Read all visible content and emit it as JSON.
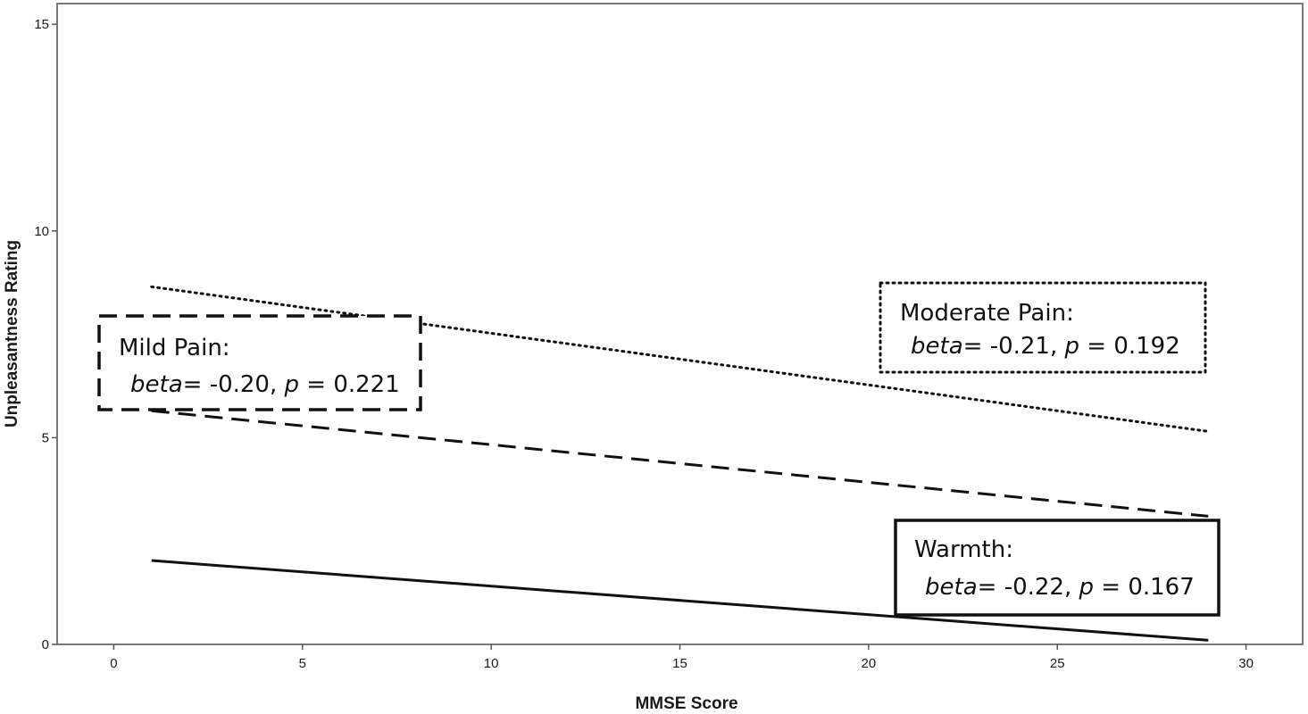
{
  "chart_data": {
    "type": "line",
    "title": "",
    "xlabel": "MMSE Score",
    "ylabel": "Unpleasantness Rating",
    "xlim": [
      -1.5,
      31.5
    ],
    "ylim": [
      0,
      15.5
    ],
    "x_ticks": [
      "0",
      "5",
      "10",
      "15",
      "20",
      "25",
      "30"
    ],
    "y_ticks": [
      "0",
      "5",
      "10",
      "15"
    ],
    "grid": false,
    "series": [
      {
        "name": "Moderate Pain",
        "style": "dotted",
        "x": [
          1,
          29
        ],
        "y": [
          8.65,
          5.15
        ],
        "annotation": {
          "name_text": "Moderate Pain:",
          "beta_label": "beta",
          "beta_text": "= -0.21, ",
          "p_label": "p",
          "p_text": " = 0.192"
        }
      },
      {
        "name": "Mild Pain",
        "style": "dashed",
        "x": [
          1,
          29
        ],
        "y": [
          5.65,
          3.1
        ],
        "annotation": {
          "name_text": "Mild Pain:",
          "beta_label": "beta",
          "beta_text": "= -0.20, ",
          "p_label": "p",
          "p_text": " = 0.221"
        }
      },
      {
        "name": "Warmth",
        "style": "solid",
        "x": [
          1,
          29
        ],
        "y": [
          2.03,
          0.1
        ],
        "annotation": {
          "name_text": "Warmth:",
          "beta_label": "beta",
          "beta_text": "= -0.22, ",
          "p_label": "p",
          "p_text": " = 0.167"
        }
      }
    ]
  }
}
